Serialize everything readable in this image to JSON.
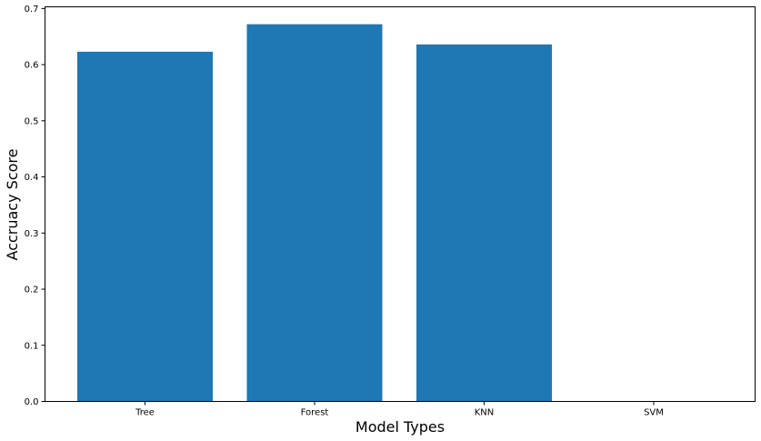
{
  "chart_data": {
    "type": "bar",
    "categories": [
      "Tree",
      "Forest",
      "KNN",
      "SVM"
    ],
    "values": [
      0.623,
      0.672,
      0.636,
      0.0
    ],
    "xlabel": "Model Types",
    "ylabel": "Accruacy Score",
    "ylim": [
      0,
      0.703
    ],
    "yticks": [
      0.0,
      0.1,
      0.2,
      0.3,
      0.4,
      0.5,
      0.6,
      0.7
    ],
    "ytick_labels": [
      "0.0",
      "0.1",
      "0.2",
      "0.3",
      "0.4",
      "0.5",
      "0.6",
      "0.7"
    ],
    "bar_color": "#1f77b4",
    "grid": false,
    "legend": "none"
  }
}
